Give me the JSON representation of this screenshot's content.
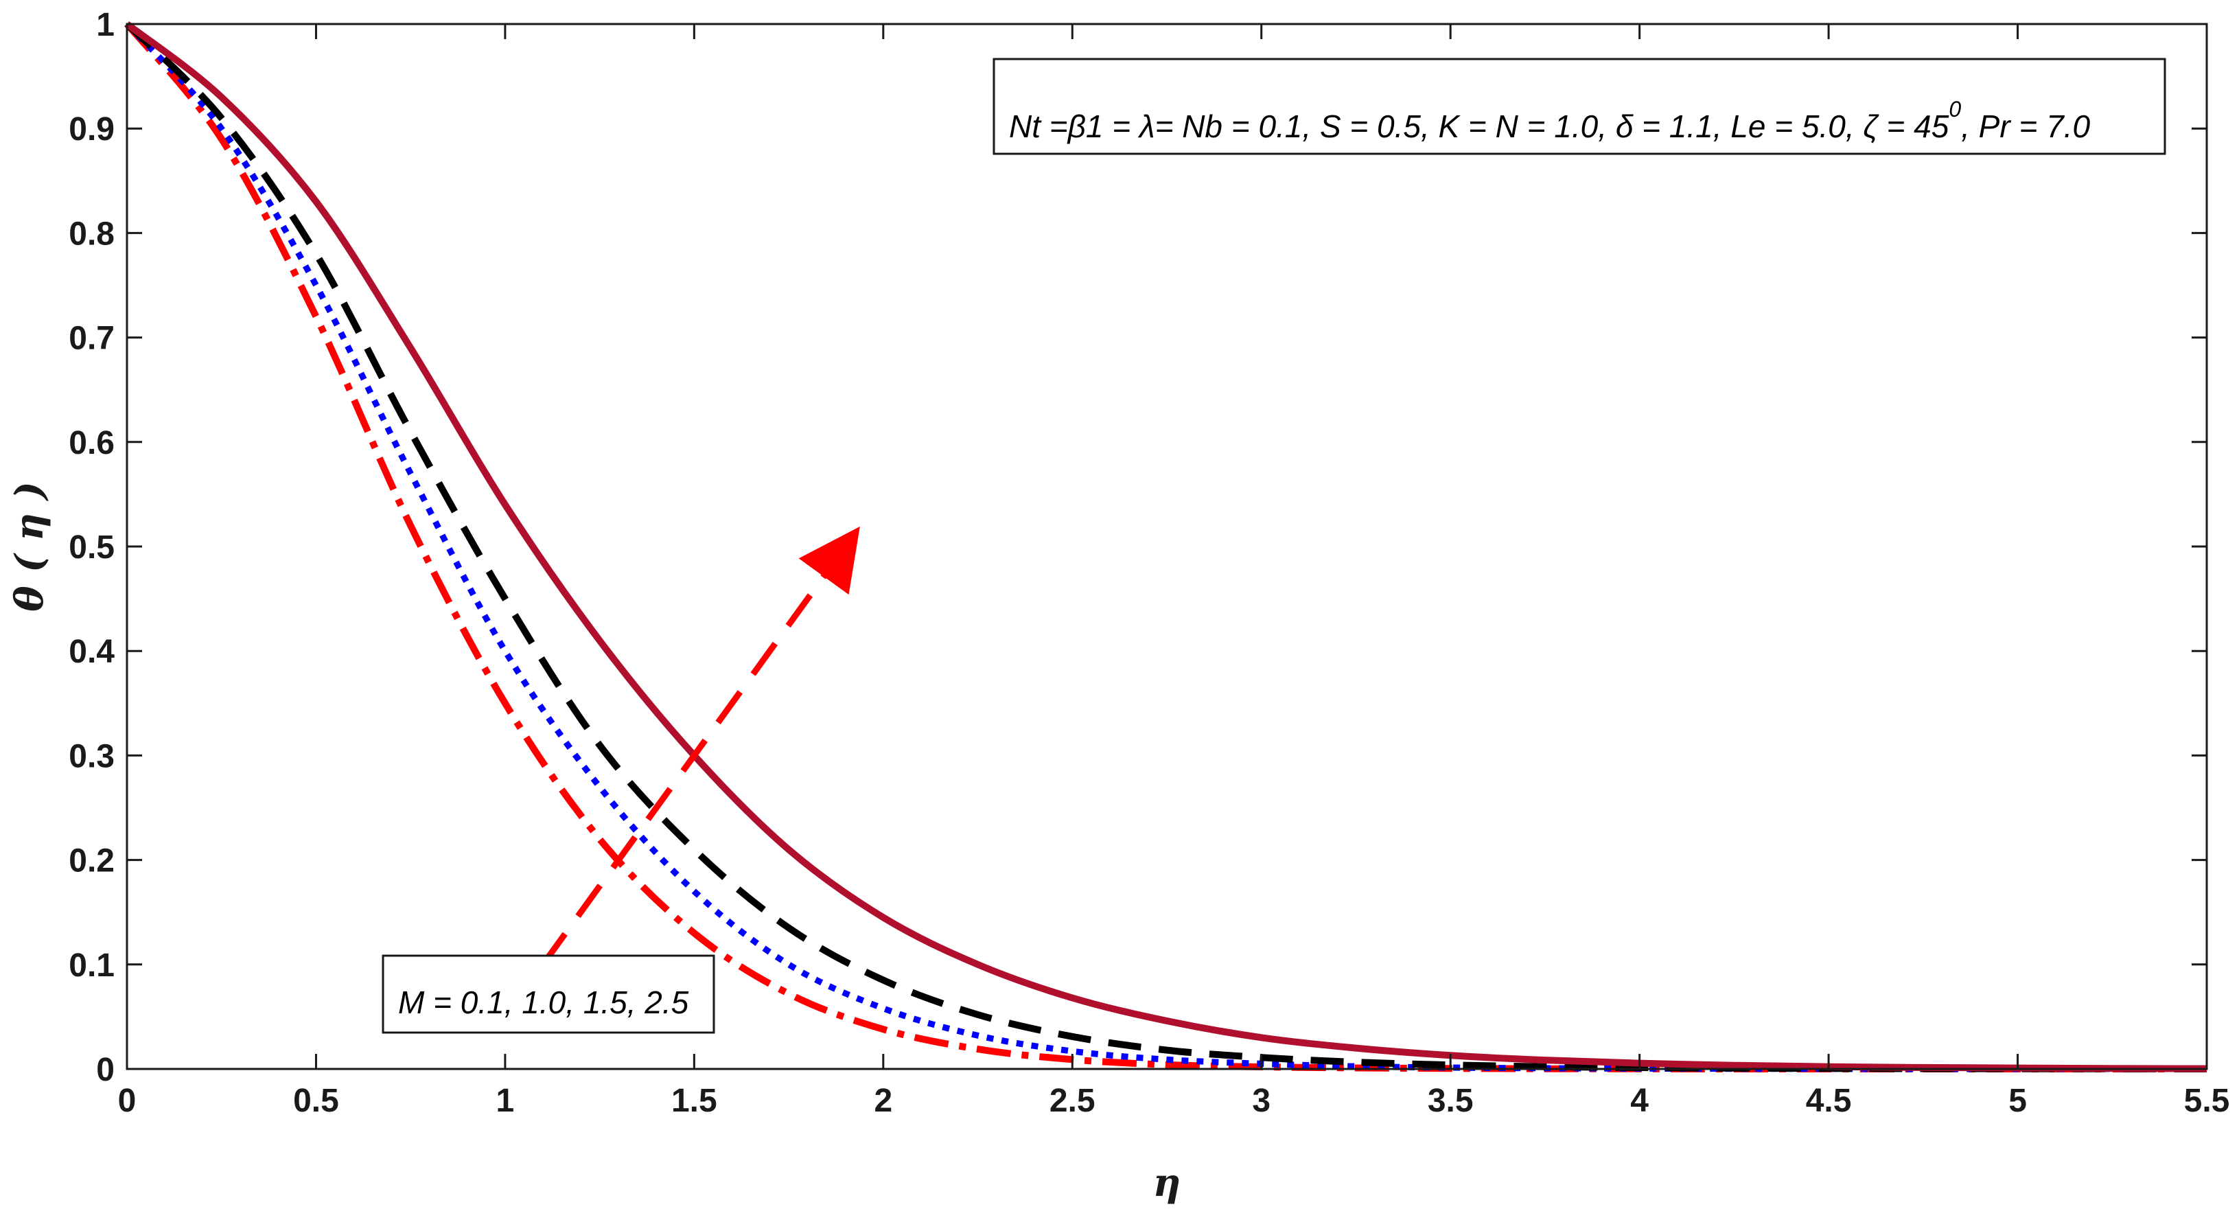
{
  "chart_data": {
    "type": "line",
    "title": "",
    "xlabel": "η",
    "ylabel": "θ ( η )",
    "xlim": [
      0,
      5.5
    ],
    "ylim": [
      0,
      1
    ],
    "grid": false,
    "x_ticks": [
      "0",
      "0.5",
      "1",
      "1.5",
      "2",
      "2.5",
      "3",
      "3.5",
      "4",
      "4.5",
      "5",
      "5.5"
    ],
    "y_ticks": [
      "0",
      "0.1",
      "0.2",
      "0.3",
      "0.4",
      "0.5",
      "0.6",
      "0.7",
      "0.8",
      "0.9",
      "1"
    ],
    "x": [
      0,
      0.25,
      0.5,
      0.75,
      1.0,
      1.25,
      1.5,
      1.75,
      2.0,
      2.25,
      2.5,
      2.75,
      3.0,
      3.25,
      3.5,
      3.75,
      4.0,
      4.25,
      4.5,
      4.75,
      5.0,
      5.25,
      5.5
    ],
    "series": [
      {
        "color": "#ff0000",
        "dash": "dashdot",
        "values": [
          1,
          0.89,
          0.72,
          0.52,
          0.35,
          0.22,
          0.13,
          0.072,
          0.038,
          0.019,
          0.009,
          0.004,
          0.002,
          0.001,
          0.0005,
          0.0002,
          0.0001,
          0,
          0,
          0,
          0,
          0,
          0
        ]
      },
      {
        "color": "#0000ff",
        "dash": "dotted",
        "values": [
          1,
          0.9,
          0.75,
          0.57,
          0.4,
          0.27,
          0.17,
          0.1,
          0.058,
          0.032,
          0.017,
          0.009,
          0.005,
          0.0025,
          0.0013,
          0.0007,
          0.0004,
          0.0002,
          0.0001,
          0,
          0,
          0,
          0
        ]
      },
      {
        "color": "#000000",
        "dash": "dashed",
        "values": [
          1,
          0.91,
          0.78,
          0.61,
          0.45,
          0.31,
          0.21,
          0.135,
          0.085,
          0.052,
          0.031,
          0.018,
          0.011,
          0.0065,
          0.0038,
          0.0022,
          0.0013,
          0.0008,
          0.0005,
          0.0003,
          0.0002,
          0.0001,
          0
        ]
      },
      {
        "color": "#b0102e",
        "dash": "solid",
        "values": [
          1,
          0.93,
          0.83,
          0.69,
          0.54,
          0.41,
          0.3,
          0.21,
          0.145,
          0.1,
          0.068,
          0.046,
          0.03,
          0.02,
          0.013,
          0.0085,
          0.0055,
          0.0035,
          0.0022,
          0.0014,
          0.0009,
          0.0005,
          0.0003
        ]
      }
    ],
    "annotations": {
      "params_box": "Nt =β1 = λ= Nb = 0.1, S = 0.5, K = N = 1.0, δ = 1.1, Le = 5.0, ζ = 45",
      "params_superscript": "0",
      "params_tail": ", Pr = 7.0",
      "m_box": "M = 0.1, 1.0, 1.5, 2.5",
      "arrow_from": [
        1.1,
        0.1
      ],
      "arrow_to": [
        1.9,
        0.5
      ],
      "arrow_color": "#ff0000"
    }
  }
}
